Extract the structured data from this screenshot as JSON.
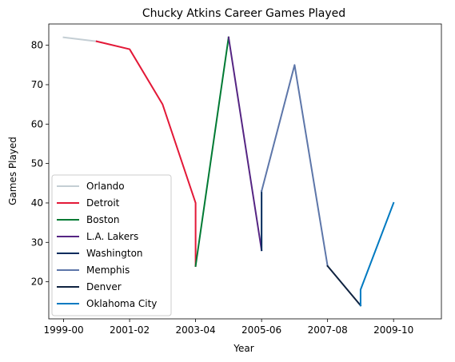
{
  "chart_data": {
    "type": "line",
    "title": "Chucky Atkins Career Games Played",
    "xlabel": "Year",
    "ylabel": "Games Played",
    "x_tick_labels": [
      "1999-00",
      "2001-02",
      "2003-04",
      "2005-06",
      "2007-08",
      "2009-10"
    ],
    "y_ticks": [
      20,
      30,
      40,
      50,
      60,
      70,
      80
    ],
    "xlim": [
      1998.55,
      2010.45
    ],
    "ylim": [
      10.6,
      85.4
    ],
    "grid": false,
    "legend_position": "lower-left",
    "series": [
      {
        "name": "Orlando",
        "color": "#C4CED4",
        "points": [
          [
            1999,
            82
          ],
          [
            2000,
            81
          ]
        ]
      },
      {
        "name": "Detroit",
        "color": "#E31837",
        "points": [
          [
            2000,
            81
          ],
          [
            2001,
            79
          ],
          [
            2002,
            65
          ],
          [
            2003,
            40
          ],
          [
            2003,
            24
          ]
        ]
      },
      {
        "name": "Boston",
        "color": "#007A33",
        "points": [
          [
            2003,
            24
          ],
          [
            2004,
            82
          ]
        ]
      },
      {
        "name": "L.A. Lakers",
        "color": "#552583",
        "points": [
          [
            2004,
            82
          ],
          [
            2005,
            28
          ]
        ]
      },
      {
        "name": "Washington",
        "color": "#002B5C",
        "points": [
          [
            2005,
            28
          ],
          [
            2005,
            43
          ]
        ]
      },
      {
        "name": "Memphis",
        "color": "#5D76A9",
        "points": [
          [
            2005,
            43
          ],
          [
            2006,
            75
          ],
          [
            2007,
            24
          ]
        ]
      },
      {
        "name": "Denver",
        "color": "#0E2240",
        "points": [
          [
            2007,
            24
          ],
          [
            2008,
            14
          ]
        ]
      },
      {
        "name": "Oklahoma City",
        "color": "#007AC1",
        "points": [
          [
            2008,
            14
          ],
          [
            2008,
            18
          ],
          [
            2009,
            40
          ]
        ]
      }
    ]
  }
}
